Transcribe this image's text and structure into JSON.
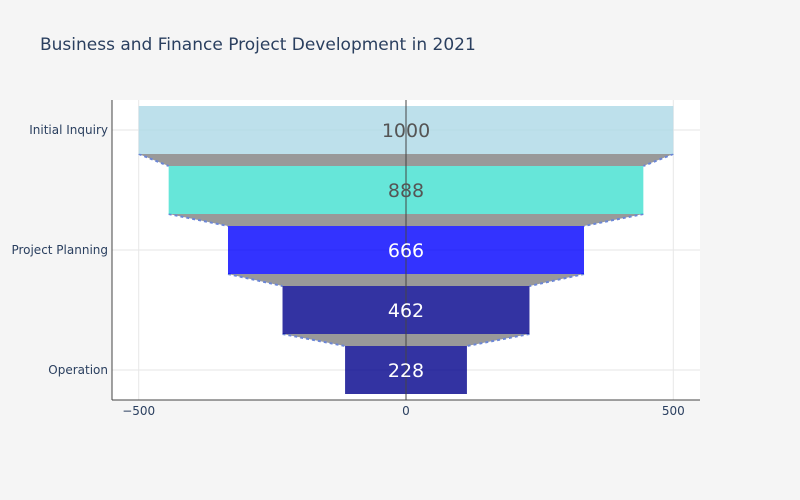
{
  "chart_data": {
    "type": "funnel",
    "title": "Business and Finance Project Development in 2021",
    "categories": [
      "Initial Inquiry",
      "",
      "Project Planning",
      "",
      "Operation"
    ],
    "values": [
      1000,
      888,
      666,
      462,
      228
    ],
    "bar_colors": [
      "#add8e6",
      "#40e0d0",
      "#0000ff",
      "#00008b",
      "#00008b"
    ],
    "label_colors": [
      "#555555",
      "#555555",
      "#ffffff",
      "#ffffff",
      "#ffffff"
    ],
    "connector_fill": "#999999",
    "connector_line": "#6b86d6",
    "xlim": [
      -550,
      550
    ],
    "xticks": [
      -500,
      0,
      500
    ],
    "xtick_labels": [
      "−500",
      "0",
      "500"
    ],
    "grid": true
  }
}
